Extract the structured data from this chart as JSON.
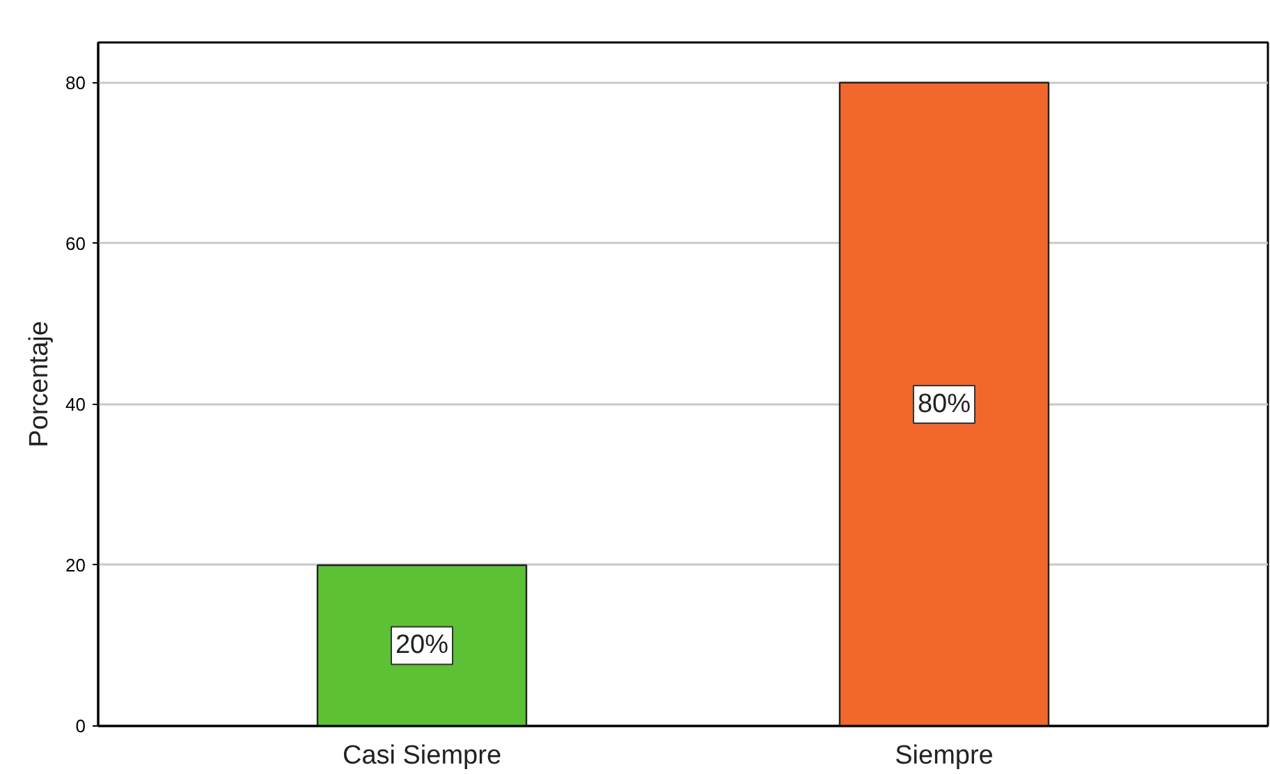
{
  "chart_data": {
    "type": "bar",
    "ylabel": "Porcentaje",
    "categories": [
      "Casi Siempre",
      "Siempre"
    ],
    "values": [
      20,
      80
    ],
    "colors": [
      "#5dc136",
      "#f2672b"
    ],
    "value_labels": [
      "20%",
      "80%"
    ],
    "ylim": [
      0,
      85
    ],
    "yticks": [
      0,
      20,
      40,
      60,
      80
    ],
    "grid": "y"
  }
}
